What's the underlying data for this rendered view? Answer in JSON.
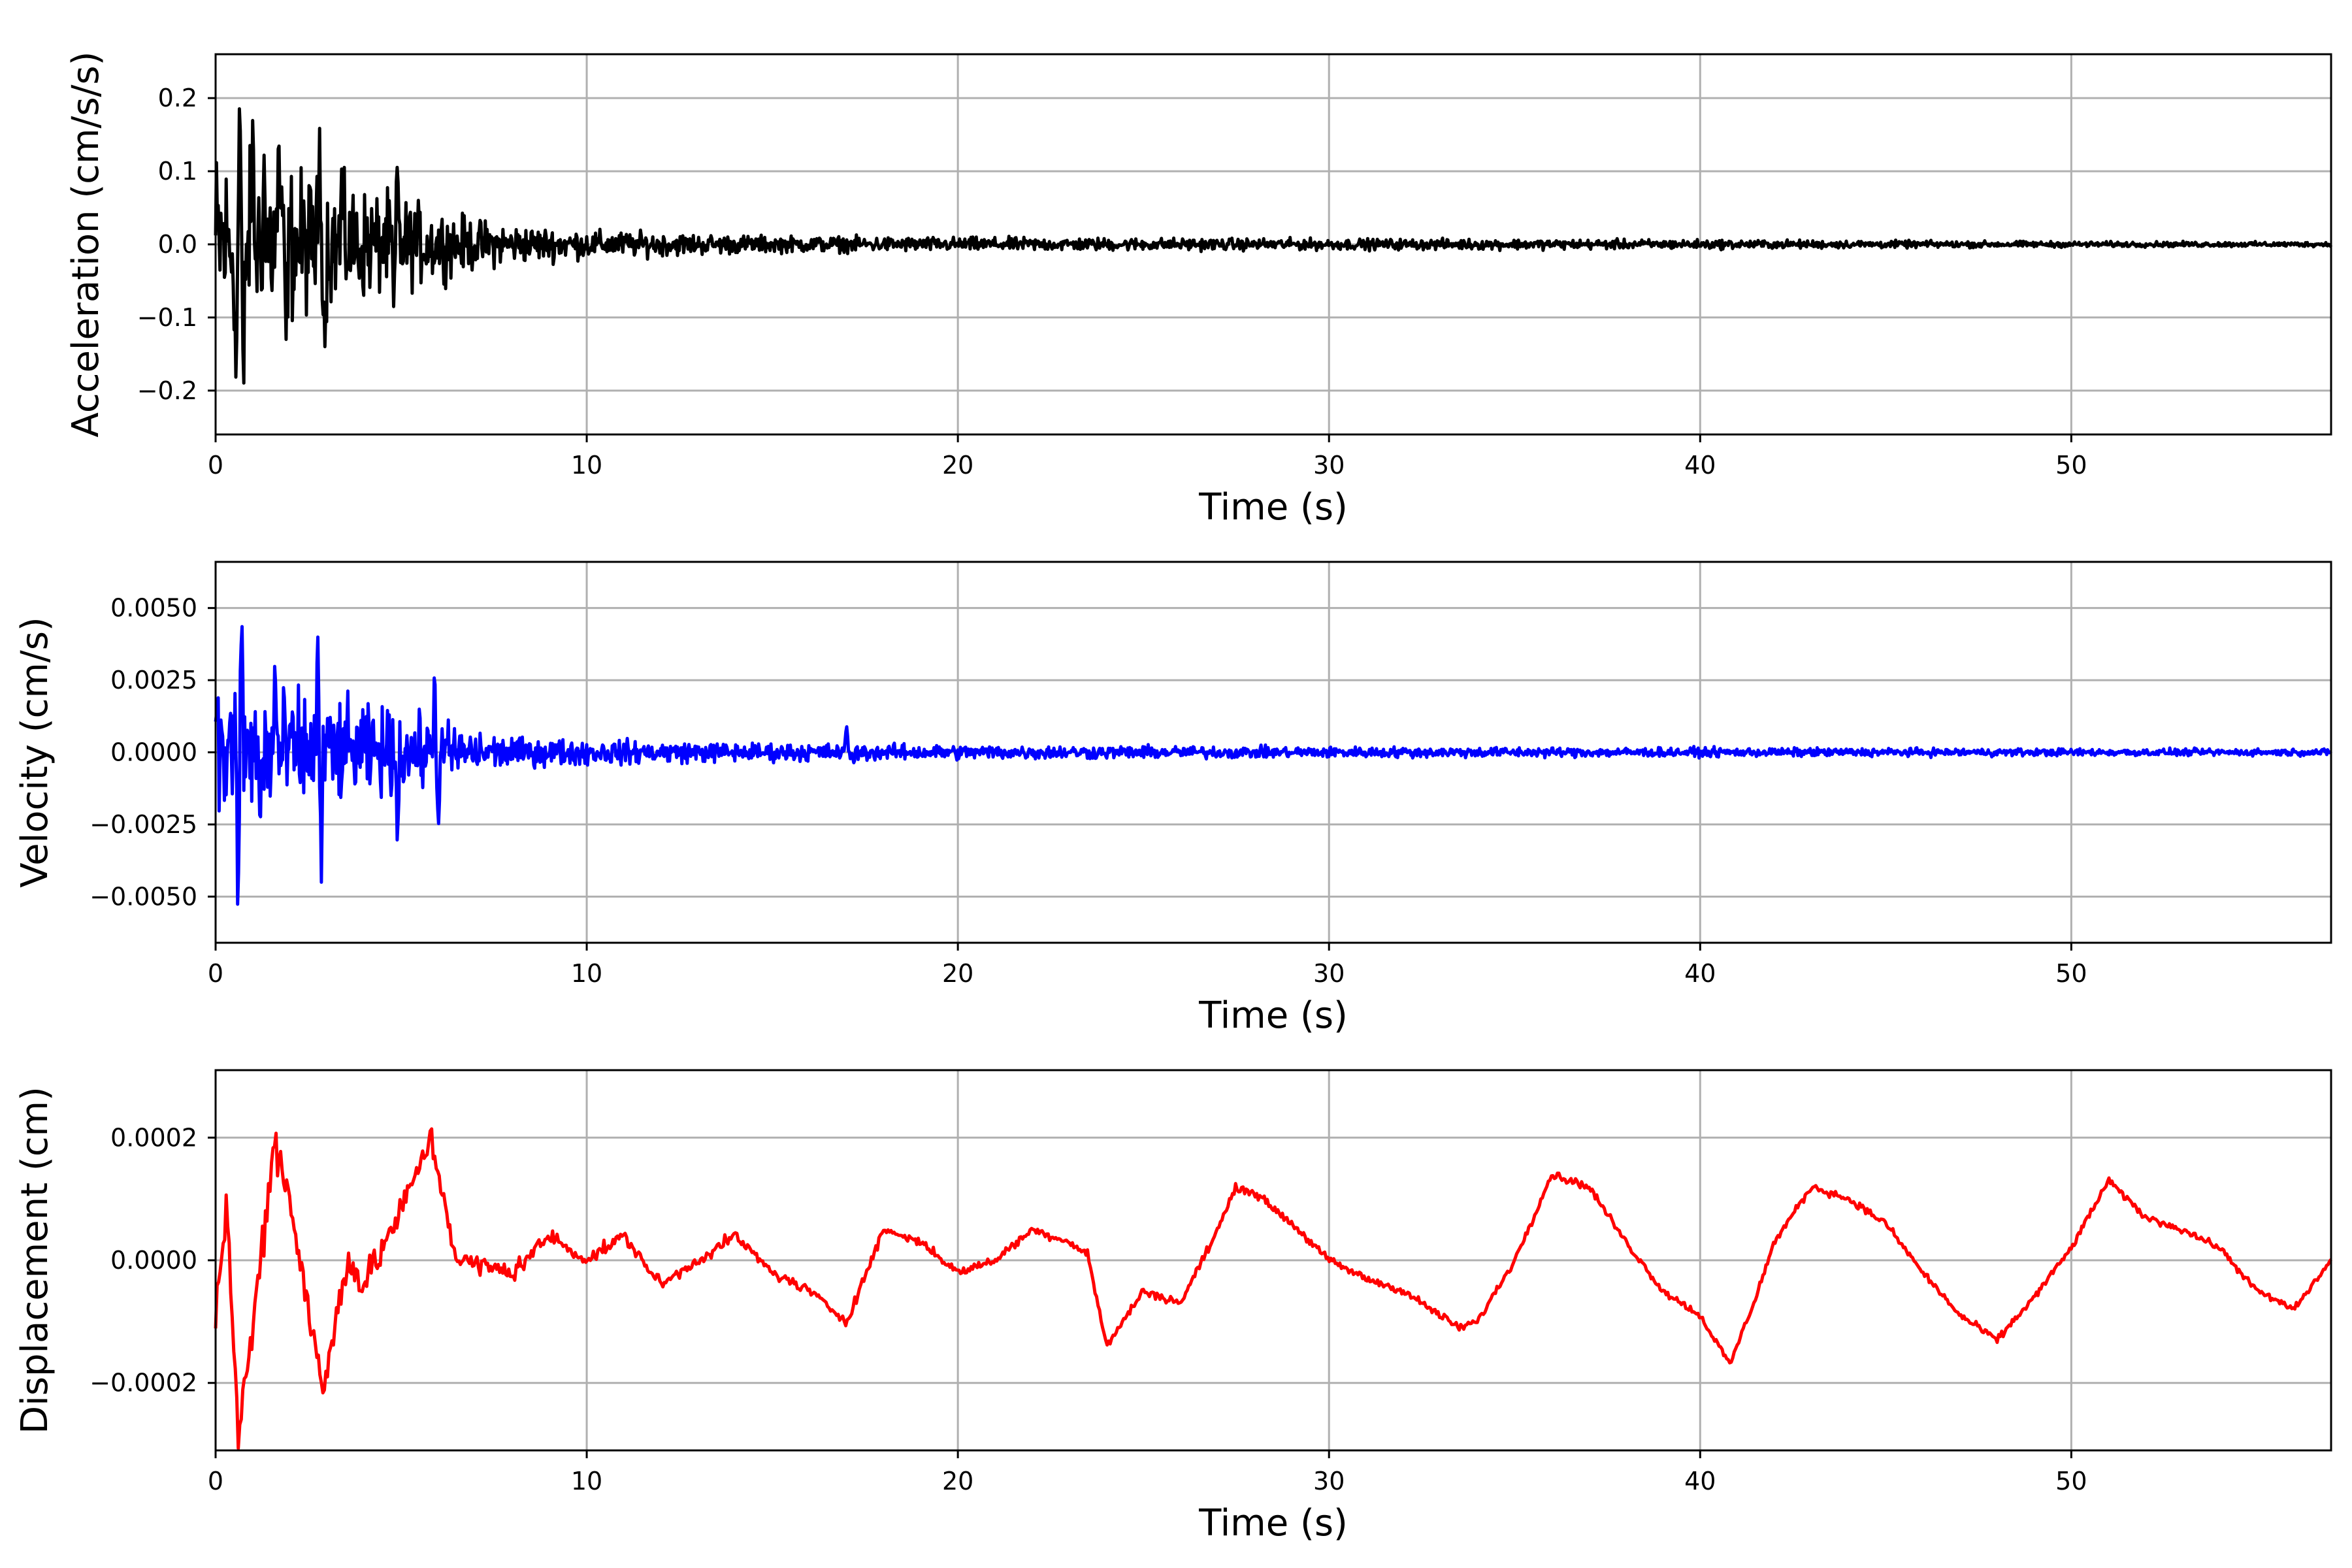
{
  "chart_data": [
    {
      "type": "line",
      "xlabel": "Time (s)",
      "ylabel": "Acceleration (cm/s/s)",
      "xlim": [
        0,
        57
      ],
      "ylim": [
        -0.26,
        0.26
      ],
      "xticks": [
        0,
        10,
        20,
        30,
        40,
        50
      ],
      "xtick_labels": [
        "0",
        "10",
        "20",
        "30",
        "40",
        "50"
      ],
      "yticks": [
        -0.2,
        -0.1,
        0.0,
        0.1,
        0.2
      ],
      "ytick_labels": [
        "−0.2",
        "−0.1",
        "0.0",
        "0.1",
        "0.2"
      ],
      "grid": true,
      "color": "#000000",
      "envelope": [
        [
          0,
          0.22
        ],
        [
          1,
          0.2
        ],
        [
          2,
          0.17
        ],
        [
          3,
          0.14
        ],
        [
          4,
          0.12
        ],
        [
          5,
          0.1
        ],
        [
          6,
          0.075
        ],
        [
          7,
          0.055
        ],
        [
          8,
          0.042
        ],
        [
          10,
          0.03
        ],
        [
          12,
          0.025
        ],
        [
          15,
          0.018
        ],
        [
          20,
          0.015
        ],
        [
          30,
          0.012
        ],
        [
          40,
          0.01
        ],
        [
          50,
          0.006
        ],
        [
          57,
          0.005
        ]
      ],
      "highlights": [
        {
          "x": 0.65,
          "y": 0.22
        },
        {
          "x": 0.75,
          "y": -0.235
        },
        {
          "x": 0.55,
          "y": -0.2
        },
        {
          "x": 1.0,
          "y": 0.175
        },
        {
          "x": 1.3,
          "y": 0.135
        },
        {
          "x": 1.7,
          "y": 0.17
        },
        {
          "x": 2.8,
          "y": 0.165
        },
        {
          "x": 2.95,
          "y": -0.155
        },
        {
          "x": 3.4,
          "y": 0.11
        },
        {
          "x": 4.9,
          "y": 0.122
        },
        {
          "x": 4.8,
          "y": -0.09
        },
        {
          "x": 1.9,
          "y": -0.13
        }
      ]
    },
    {
      "type": "line",
      "xlabel": "Time (s)",
      "ylabel": "Velocity (cm/s)",
      "xlim": [
        0,
        57
      ],
      "ylim": [
        -0.0066,
        0.0066
      ],
      "xticks": [
        0,
        10,
        20,
        30,
        40,
        50
      ],
      "xtick_labels": [
        "0",
        "10",
        "20",
        "30",
        "40",
        "50"
      ],
      "yticks": [
        -0.005,
        -0.0025,
        0.0,
        0.0025,
        0.005
      ],
      "ytick_labels": [
        "−0.0050",
        "−0.0025",
        "0.0000",
        "0.0025",
        "0.0050"
      ],
      "grid": true,
      "color": "#0000ff",
      "envelope": [
        [
          0,
          0.0045
        ],
        [
          1,
          0.004
        ],
        [
          2,
          0.0033
        ],
        [
          3,
          0.003
        ],
        [
          4,
          0.0025
        ],
        [
          5,
          0.0022
        ],
        [
          6,
          0.0018
        ],
        [
          7,
          0.0012
        ],
        [
          8,
          0.0008
        ],
        [
          10,
          0.0007
        ],
        [
          12,
          0.0006
        ],
        [
          15,
          0.0005
        ],
        [
          20,
          0.0004
        ],
        [
          30,
          0.0003
        ],
        [
          40,
          0.00025
        ],
        [
          50,
          0.0002
        ],
        [
          57,
          0.00018
        ]
      ],
      "highlights": [
        {
          "x": 0.7,
          "y": 0.0054
        },
        {
          "x": 0.6,
          "y": -0.006
        },
        {
          "x": 2.75,
          "y": 0.0043
        },
        {
          "x": 2.85,
          "y": -0.0045
        },
        {
          "x": 5.9,
          "y": 0.0031
        },
        {
          "x": 4.9,
          "y": -0.0035
        },
        {
          "x": 6.0,
          "y": -0.003
        },
        {
          "x": 1.6,
          "y": 0.0035
        },
        {
          "x": 1.2,
          "y": -0.003
        },
        {
          "x": 17.0,
          "y": 0.001
        },
        {
          "x": 17.2,
          "y": -0.0004
        }
      ]
    },
    {
      "type": "line",
      "xlabel": "Time (s)",
      "ylabel": "Displacement (cm)",
      "xlim": [
        0,
        57
      ],
      "ylim": [
        -0.00031,
        0.00031
      ],
      "xticks": [
        0,
        10,
        20,
        30,
        40,
        50
      ],
      "xtick_labels": [
        "0",
        "10",
        "20",
        "30",
        "40",
        "50"
      ],
      "yticks": [
        -0.0002,
        0.0,
        0.0002
      ],
      "ytick_labels": [
        "−0.0002",
        "0.0000",
        "0.0002"
      ],
      "grid": true,
      "color": "#ff0000",
      "trend": [
        [
          0,
          -8e-05
        ],
        [
          0.3,
          9e-05
        ],
        [
          0.6,
          -0.00028
        ],
        [
          0.9,
          -0.00016
        ],
        [
          1.6,
          0.0002
        ],
        [
          2.0,
          0.0001
        ],
        [
          2.9,
          -0.00022
        ],
        [
          3.5,
          0.0
        ],
        [
          4.0,
          -4e-05
        ],
        [
          5.0,
          8e-05
        ],
        [
          5.8,
          0.0002
        ],
        [
          6.5,
          0.0
        ],
        [
          8,
          -2e-05
        ],
        [
          9,
          4e-05
        ],
        [
          10,
          0.0
        ],
        [
          11,
          4e-05
        ],
        [
          12,
          -4e-05
        ],
        [
          14,
          4e-05
        ],
        [
          15,
          -2e-05
        ],
        [
          16,
          -5e-05
        ],
        [
          17,
          -0.0001
        ],
        [
          18,
          5e-05
        ],
        [
          19,
          3e-05
        ],
        [
          20,
          -2e-05
        ],
        [
          21,
          0.0
        ],
        [
          22,
          5e-05
        ],
        [
          23,
          3e-05
        ],
        [
          23.5,
          1e-05
        ],
        [
          24,
          -0.00014
        ],
        [
          25,
          -5e-05
        ],
        [
          26,
          -7e-05
        ],
        [
          27,
          5e-05
        ],
        [
          27.5,
          0.00012
        ],
        [
          28,
          0.00011
        ],
        [
          29,
          6e-05
        ],
        [
          30,
          0.0
        ],
        [
          31,
          -3e-05
        ],
        [
          32,
          -5e-05
        ],
        [
          33,
          -9e-05
        ],
        [
          33.5,
          -0.00011
        ],
        [
          34,
          -0.0001
        ],
        [
          35,
          0.0
        ],
        [
          36,
          0.00014
        ],
        [
          37,
          0.00012
        ],
        [
          38,
          3e-05
        ],
        [
          39,
          -5e-05
        ],
        [
          40,
          -9e-05
        ],
        [
          40.8,
          -0.00017
        ],
        [
          41.5,
          -6e-05
        ],
        [
          42,
          3e-05
        ],
        [
          43,
          0.00012
        ],
        [
          44,
          0.0001
        ],
        [
          45,
          6e-05
        ],
        [
          46,
          -2e-05
        ],
        [
          47,
          -9e-05
        ],
        [
          48,
          -0.00013
        ],
        [
          49,
          -6e-05
        ],
        [
          50,
          2e-05
        ],
        [
          51,
          0.00013
        ],
        [
          52,
          7e-05
        ],
        [
          53,
          5e-05
        ],
        [
          54,
          2e-05
        ],
        [
          55,
          -5e-05
        ],
        [
          56,
          -8e-05
        ],
        [
          57,
          0.0
        ]
      ],
      "noise_envelope": [
        [
          0,
          6e-05
        ],
        [
          3,
          5e-05
        ],
        [
          6,
          3e-05
        ],
        [
          10,
          1.5e-05
        ],
        [
          20,
          1e-05
        ],
        [
          57,
          8e-06
        ]
      ]
    }
  ]
}
